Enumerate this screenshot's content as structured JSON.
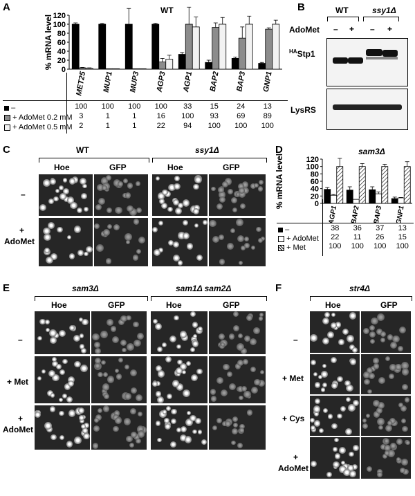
{
  "panels": {
    "A": {
      "label": "A",
      "title": "WT",
      "ylabel": "% mRNA level",
      "legend": [
        "–",
        "+ AdoMet 0.2 mM",
        "+ AdoMet 0.5 mM"
      ],
      "genes": [
        "MET25",
        "MUP1",
        "MUP3",
        "AGP3",
        "AGP1",
        "BAP2",
        "BAP3",
        "GNP1"
      ],
      "rows": [
        [
          "100",
          "100",
          "100",
          "100",
          "33",
          "15",
          "24",
          "13"
        ],
        [
          "3",
          "1",
          "1",
          "16",
          "100",
          "93",
          "69",
          "89"
        ],
        [
          "2",
          "1",
          "1",
          "22",
          "94",
          "100",
          "100",
          "100"
        ]
      ]
    },
    "B": {
      "label": "B",
      "wt": "WT",
      "mutant": "ssy1Δ",
      "adomet": "AdoMet",
      "signs": [
        "–",
        "+",
        "–",
        "+"
      ],
      "blot1_label_sup": "HA",
      "blot1_label": "Stp1",
      "blot2_label": "LysRS"
    },
    "C": {
      "label": "C",
      "groups": [
        "WT",
        "ssy1Δ"
      ],
      "cols": [
        "Hoe",
        "GFP",
        "Hoe",
        "GFP"
      ],
      "row_minus": "–",
      "row_plus": "+",
      "row_plus2": "AdoMet"
    },
    "D": {
      "label": "D",
      "title": "sam3Δ",
      "ylabel": "% mRNA level",
      "legend": [
        "–",
        "+ AdoMet",
        "+ Met"
      ],
      "genes": [
        "AGP1",
        "BAP2",
        "BAP3",
        "GNP1"
      ],
      "rows": [
        [
          "38",
          "36",
          "37",
          "13"
        ],
        [
          "22",
          "11",
          "26",
          "15"
        ],
        [
          "100",
          "100",
          "100",
          "100"
        ]
      ]
    },
    "E": {
      "label": "E",
      "groups": [
        "sam3Δ",
        "sam1Δ sam2Δ"
      ],
      "cols": [
        "Hoe",
        "GFP",
        "Hoe",
        "GFP"
      ],
      "row_minus": "–",
      "row_met": "+ Met",
      "row_plus": "+",
      "row_plus2": "AdoMet"
    },
    "F": {
      "label": "F",
      "group": "str4Δ",
      "cols": [
        "Hoe",
        "GFP"
      ],
      "row_minus": "–",
      "row_met": "+ Met",
      "row_cys": "+ Cys",
      "row_plus": "+",
      "row_plus2": "AdoMet"
    }
  },
  "chart_data": [
    {
      "type": "bar",
      "panel": "A",
      "title": "WT",
      "ylabel": "% mRNA level",
      "ylim": [
        0,
        120
      ],
      "yticks": [
        0,
        20,
        40,
        60,
        80,
        100,
        120
      ],
      "categories": [
        "MET25",
        "MUP1",
        "MUP3",
        "AGP3",
        "AGP1",
        "BAP2",
        "BAP3",
        "GNP1"
      ],
      "series": [
        {
          "name": "–",
          "color": "#000000",
          "values": [
            100,
            100,
            100,
            100,
            33,
            15,
            24,
            13
          ],
          "err": [
            3,
            2,
            35,
            2,
            4,
            5,
            3,
            2
          ]
        },
        {
          "name": "+ AdoMet 0.2 mM",
          "color": "#8c8c8c",
          "values": [
            3,
            1,
            1,
            16,
            100,
            93,
            69,
            89
          ],
          "err": [
            1,
            0,
            0,
            8,
            38,
            10,
            25,
            3
          ]
        },
        {
          "name": "+ AdoMet 0.5 mM",
          "color": "#f2f2f2",
          "values": [
            2,
            1,
            1,
            22,
            94,
            100,
            100,
            100
          ],
          "err": [
            1,
            0,
            0,
            9,
            22,
            15,
            18,
            9
          ]
        }
      ]
    },
    {
      "type": "bar",
      "panel": "D",
      "title": "sam3Δ",
      "ylabel": "% mRNA level",
      "ylim": [
        0,
        120
      ],
      "yticks": [
        0,
        20,
        40,
        60,
        80,
        100,
        120
      ],
      "categories": [
        "AGP1",
        "BAP2",
        "BAP3",
        "GNP1"
      ],
      "series": [
        {
          "name": "–",
          "color": "#000000",
          "values": [
            38,
            36,
            37,
            13
          ],
          "err": [
            5,
            9,
            8,
            4
          ]
        },
        {
          "name": "+ AdoMet",
          "color": "#ffffff",
          "values": [
            22,
            11,
            26,
            15
          ],
          "err": [
            2,
            0,
            5,
            1
          ]
        },
        {
          "name": "+ Met",
          "color": "hatch",
          "values": [
            100,
            100,
            100,
            100
          ],
          "err": [
            22,
            8,
            6,
            13
          ]
        }
      ]
    }
  ]
}
